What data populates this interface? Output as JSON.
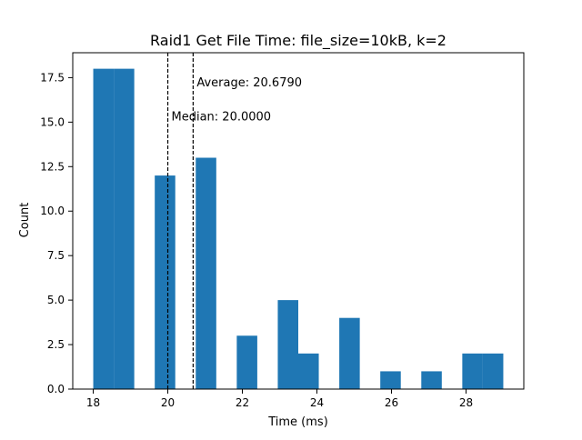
{
  "chart_data": {
    "type": "bar",
    "title": "Raid1 Get File Time: file_size=10kB, k=2",
    "xlabel": "Time (ms)",
    "ylabel": "Count",
    "xlim": [
      17.45,
      29.55
    ],
    "ylim": [
      0,
      18.9
    ],
    "bin_width": 0.55,
    "bars": [
      {
        "x": 18.0,
        "count": 18
      },
      {
        "x": 18.55,
        "count": 18
      },
      {
        "x": 19.65,
        "count": 12
      },
      {
        "x": 20.75,
        "count": 13
      },
      {
        "x": 21.85,
        "count": 3
      },
      {
        "x": 22.95,
        "count": 5
      },
      {
        "x": 23.5,
        "count": 2
      },
      {
        "x": 24.6,
        "count": 4
      },
      {
        "x": 25.7,
        "count": 1
      },
      {
        "x": 26.8,
        "count": 1
      },
      {
        "x": 27.9,
        "count": 2
      },
      {
        "x": 28.45,
        "count": 2
      }
    ],
    "x_ticks": [
      18,
      20,
      22,
      24,
      26,
      28
    ],
    "y_ticks": [
      0.0,
      2.5,
      5.0,
      7.5,
      10.0,
      12.5,
      15.0,
      17.5
    ],
    "bar_color": "#1f77b4",
    "grid": false,
    "reference_lines": [
      {
        "x": 20.0,
        "label": "Median: 20.0000",
        "label_y": 15.1
      },
      {
        "x": 20.679,
        "label": "Average: 20.6790",
        "label_y": 17.0
      }
    ]
  }
}
